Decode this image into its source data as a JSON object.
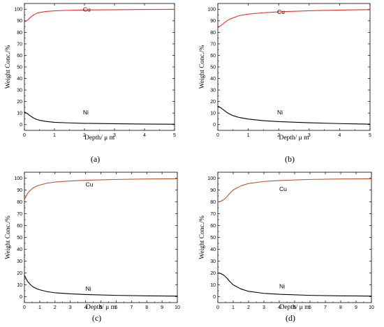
{
  "chart_data": [
    {
      "type": "line",
      "panel_label": "(a)",
      "xlabel": "Depth/ μ m",
      "ylabel": "Weight Conc./%",
      "xlim": [
        0,
        5
      ],
      "ylim": [
        -5,
        105
      ],
      "xticks": [
        0,
        1,
        2,
        3,
        4,
        5
      ],
      "yticks": [
        0,
        10,
        20,
        30,
        40,
        50,
        60,
        70,
        80,
        90,
        100
      ],
      "series": [
        {
          "name": "Cu",
          "color": "#e8302a",
          "x": [
            0,
            0.1,
            0.2,
            0.3,
            0.4,
            0.5,
            0.7,
            1.0,
            1.5,
            2,
            3,
            4,
            5
          ],
          "y": [
            89,
            90.5,
            93,
            95,
            96.5,
            97.2,
            98,
            98.6,
            99.1,
            99.4,
            99.6,
            99.8,
            99.9
          ]
        },
        {
          "name": "Ni",
          "color": "#000000",
          "x": [
            0,
            0.1,
            0.2,
            0.3,
            0.4,
            0.5,
            0.7,
            1.0,
            1.5,
            2,
            3,
            4,
            5
          ],
          "y": [
            11,
            9.5,
            7.5,
            5.8,
            4.6,
            3.8,
            2.8,
            2.0,
            1.5,
            1.1,
            0.8,
            0.5,
            0.3
          ]
        }
      ]
    },
    {
      "type": "line",
      "panel_label": "(b)",
      "xlabel": "Depth/ μ m",
      "ylabel": "Weight Conc./%",
      "xlim": [
        0,
        5
      ],
      "ylim": [
        -5,
        105
      ],
      "xticks": [
        0,
        1,
        2,
        3,
        4,
        5
      ],
      "yticks": [
        0,
        10,
        20,
        30,
        40,
        50,
        60,
        70,
        80,
        90,
        100
      ],
      "series": [
        {
          "name": "Cu",
          "color": "#e8302a",
          "x": [
            0,
            0.1,
            0.2,
            0.3,
            0.4,
            0.5,
            0.7,
            1.0,
            1.5,
            2,
            3,
            4,
            5
          ],
          "y": [
            84,
            86,
            88,
            90,
            91.5,
            92.5,
            94.5,
            95.8,
            97,
            97.8,
            98.7,
            99.3,
            99.7
          ]
        },
        {
          "name": "Ni",
          "color": "#000000",
          "x": [
            0,
            0.1,
            0.2,
            0.3,
            0.4,
            0.5,
            0.7,
            1.0,
            1.5,
            2,
            3,
            4,
            5
          ],
          "y": [
            16,
            14.5,
            12.5,
            10.5,
            9,
            7.8,
            6.2,
            4.8,
            3.4,
            2.6,
            1.6,
            0.9,
            0.4
          ]
        }
      ]
    },
    {
      "type": "line",
      "panel_label": "(c)",
      "xlabel": "Depth/ μ m",
      "ylabel": "Weight Conc./%",
      "xlim": [
        0,
        10
      ],
      "ylim": [
        -5,
        105
      ],
      "xticks": [
        0,
        1,
        2,
        3,
        4,
        5,
        6,
        7,
        8,
        9,
        10
      ],
      "yticks": [
        0,
        10,
        20,
        30,
        40,
        50,
        60,
        70,
        80,
        90,
        100
      ],
      "series": [
        {
          "name": "Cu",
          "color": "#b5552c",
          "x": [
            0,
            0.2,
            0.4,
            0.6,
            0.8,
            1.0,
            1.5,
            2,
            3,
            4,
            6,
            8,
            10
          ],
          "y": [
            82,
            87,
            90,
            92,
            93.3,
            94.2,
            95.8,
            96.7,
            97.6,
            98.2,
            98.9,
            99.3,
            99.5
          ]
        },
        {
          "name": "Ni",
          "color": "#000000",
          "x": [
            0,
            0.2,
            0.4,
            0.6,
            0.8,
            1.0,
            1.5,
            2,
            3,
            4,
            6,
            8,
            10
          ],
          "y": [
            18,
            13,
            10,
            8,
            6.7,
            5.8,
            4.2,
            3.3,
            2.4,
            1.8,
            1.1,
            0.7,
            0.5
          ]
        }
      ]
    },
    {
      "type": "line",
      "panel_label": "(d)",
      "xlabel": "Depth/ μ m",
      "ylabel": "Weight Conc./%",
      "xlim": [
        0,
        10
      ],
      "ylim": [
        -5,
        105
      ],
      "xticks": [
        0,
        1,
        2,
        3,
        4,
        5,
        6,
        7,
        8,
        9,
        10
      ],
      "yticks": [
        0,
        10,
        20,
        30,
        40,
        50,
        60,
        70,
        80,
        90,
        100
      ],
      "series": [
        {
          "name": "Cu",
          "color": "#b5552c",
          "x": [
            0,
            0.2,
            0.4,
            0.6,
            0.8,
            1.0,
            1.5,
            2,
            3,
            4,
            6,
            8,
            10
          ],
          "y": [
            80,
            80.5,
            82,
            84.5,
            87.5,
            90,
            93.5,
            95.5,
            97.2,
            98,
            98.9,
            99.3,
            99.5
          ]
        },
        {
          "name": "Ni",
          "color": "#000000",
          "x": [
            0,
            0.2,
            0.4,
            0.6,
            0.8,
            1.0,
            1.5,
            2,
            3,
            4,
            6,
            8,
            10
          ],
          "y": [
            20,
            19.5,
            18,
            15.5,
            12.5,
            10,
            6.5,
            4.5,
            2.8,
            2,
            1.1,
            0.7,
            0.5
          ]
        }
      ]
    }
  ]
}
